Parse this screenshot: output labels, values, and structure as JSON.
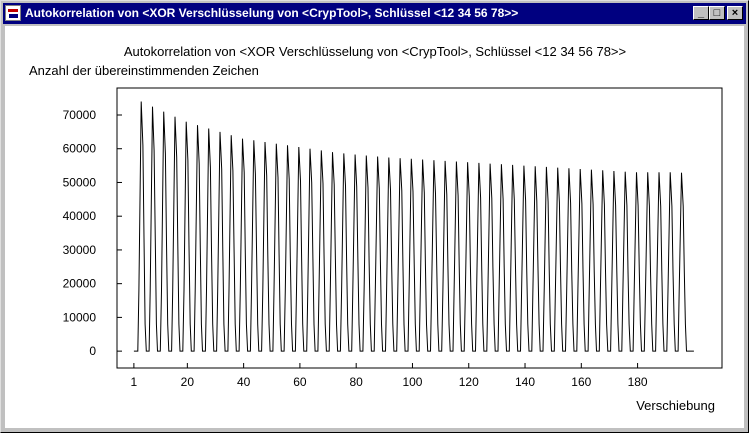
{
  "window": {
    "title": "Autokorrelation von <XOR Verschlüsselung von <CrypTool>, Schlüssel <12 34 56 78>>",
    "minimize_glyph": "_",
    "maximize_glyph": "□",
    "close_glyph": "×"
  },
  "chart_data": {
    "type": "line",
    "title": "Autokorrelation von <XOR Verschlüsselung von <CrypTool>, Schlüssel <12 34 56 78>>",
    "ylabel": "Anzahl der übereinstimmenden Zeichen",
    "xlabel": "Verschiebung",
    "xlim": [
      -5,
      210
    ],
    "ylim": [
      -5000,
      78000
    ],
    "xticks": [
      1,
      20,
      40,
      60,
      80,
      100,
      120,
      140,
      160,
      180
    ],
    "yticks": [
      0,
      10000,
      20000,
      30000,
      40000,
      50000,
      60000,
      70000
    ],
    "grid": false,
    "legend": "none",
    "x_start": 1,
    "x_end": 200,
    "peak_period": 4,
    "first_peak_x": 4,
    "peak_values": [
      74000,
      72500,
      71000,
      69500,
      68000,
      67000,
      66000,
      65000,
      64000,
      63000,
      62500,
      62000,
      61500,
      61000,
      60500,
      60000,
      59500,
      59000,
      58600,
      58300,
      58000,
      57700,
      57400,
      57200,
      57000,
      56800,
      56600,
      56400,
      56200,
      56000,
      55800,
      55600,
      55400,
      55200,
      55000,
      54800,
      54600,
      54400,
      54200,
      54000,
      53800,
      53600,
      53400,
      53200,
      53000,
      53000,
      53000,
      53000,
      52900
    ],
    "shoulder_values": [
      61000,
      59500,
      58500,
      57500,
      56500,
      55500,
      54500,
      54000,
      53500,
      53000,
      52500,
      52000,
      51500,
      51000,
      50500,
      50000,
      49700,
      49400,
      49100,
      48800,
      48500,
      48200,
      47900,
      47600,
      47300,
      47000,
      46700,
      46400,
      46100,
      45800,
      45500,
      45300,
      45100,
      44900,
      44700,
      44500,
      44300,
      44100,
      43900,
      43700,
      43500,
      43400,
      43300,
      43200,
      43100,
      43000,
      43000,
      43000,
      43000
    ],
    "color": "#000000"
  }
}
